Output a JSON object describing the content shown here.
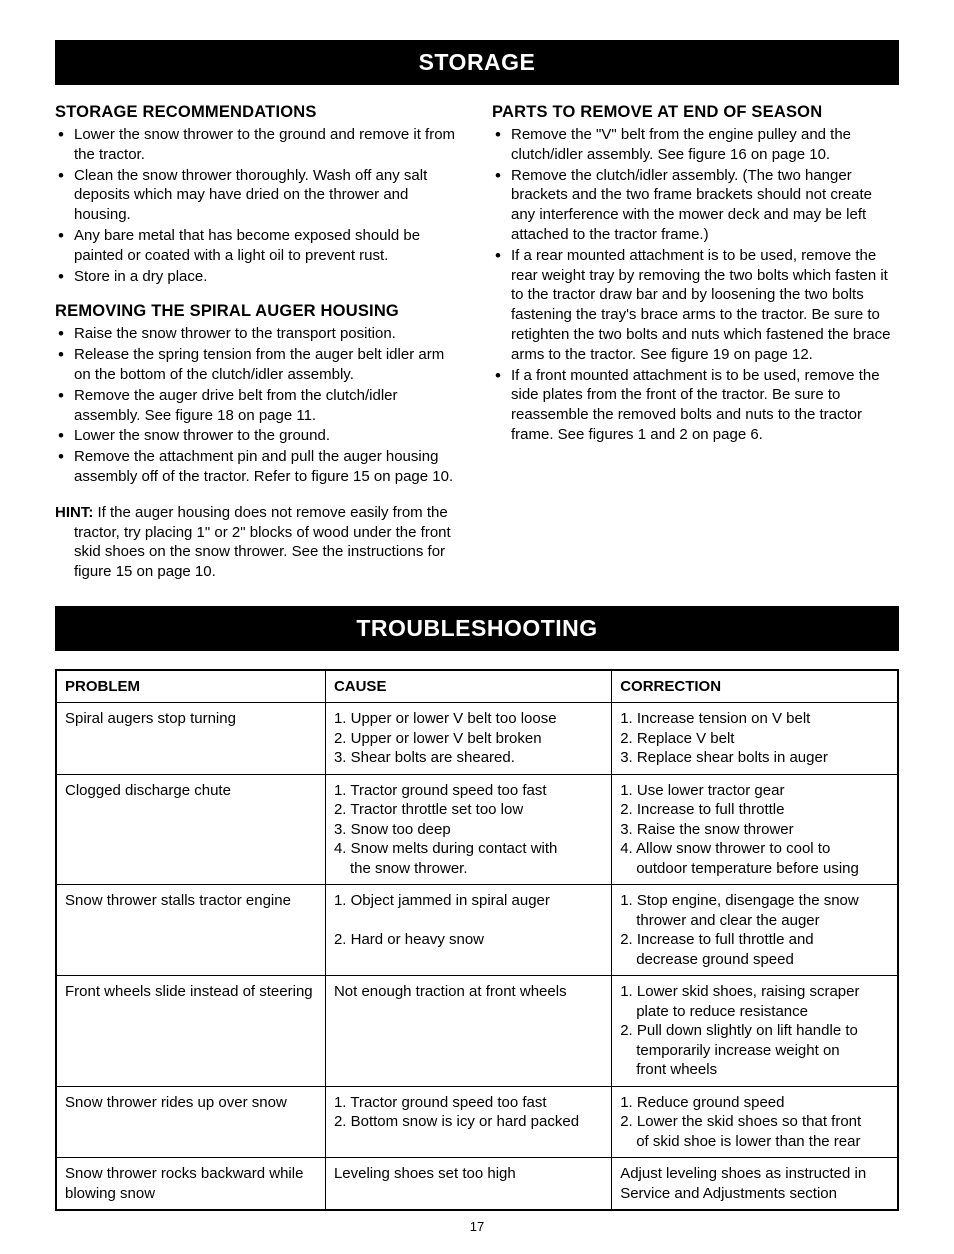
{
  "banner_storage": "STORAGE",
  "banner_trouble": "TROUBLESHOOTING",
  "storage_rec": {
    "title": "STORAGE RECOMMENDATIONS",
    "items": [
      "Lower the snow thrower to the ground and remove it from the tractor.",
      "Clean the snow thrower thoroughly. Wash off any salt deposits which may have dried on the thrower and housing.",
      "Any bare metal that has become exposed should be painted or coated with a light oil to prevent rust.",
      "Store in a dry place."
    ]
  },
  "removing": {
    "title": "REMOVING THE SPIRAL AUGER HOUSING",
    "items": [
      "Raise the snow thrower to the transport position.",
      "Release the spring tension from the auger belt idler arm on the bottom of the clutch/idler assembly.",
      "Remove the auger drive belt from the clutch/idler assembly. See figure 18 on page 11.",
      "Lower the snow thrower to the ground.",
      "Remove the attachment pin and pull the auger housing assembly off of the tractor. Refer to figure 15 on page 10."
    ],
    "hint_label": "HINT:",
    "hint_text": " If the auger housing does not remove easily from the tractor, try placing 1\" or 2\" blocks of wood under the front skid shoes on the snow thrower. See the instructions for figure 15 on page 10."
  },
  "parts": {
    "title": "PARTS TO REMOVE AT END OF SEASON",
    "items": [
      "Remove the \"V\" belt from the engine pulley and the clutch/idler assembly. See figure 16 on page 10.",
      "Remove the clutch/idler assembly. (The two hanger brackets and the two frame brackets should not create any interference with the mower deck and may be left attached to the tractor frame.)",
      "If a rear mounted attachment is to be used, remove the rear weight tray by removing the two bolts which fasten it to the tractor draw bar and by loosening the two bolts fastening the tray's brace arms to the tractor. Be sure to retighten the two bolts and nuts which fastened the brace arms to the tractor. See figure 19 on page 12.",
      "If a front mounted attachment is to be used, remove the side plates from the front of the tractor. Be sure to reassemble the removed bolts and nuts to the tractor frame. See figures 1 and 2 on page 6."
    ]
  },
  "table": {
    "headers": {
      "problem": "PROBLEM",
      "cause": "CAUSE",
      "correction": "CORRECTION"
    },
    "rows": [
      {
        "problem": "Spiral augers stop turning",
        "cause": "1. Upper or lower V belt too loose\n2. Upper or lower V belt broken\n3. Shear bolts are sheared.",
        "correction": "1. Increase tension on V belt\n2. Replace V belt\n3. Replace shear bolts in auger"
      },
      {
        "problem": "Clogged discharge chute",
        "cause": "1. Tractor ground speed too fast\n2. Tractor throttle set too low\n3. Snow too deep\n4. Snow melts during contact with\n    the snow thrower.",
        "correction": "1. Use lower tractor gear\n2. Increase to full throttle\n3. Raise the snow thrower\n4. Allow snow thrower to cool to\n    outdoor temperature before using"
      },
      {
        "problem": "Snow thrower stalls tractor engine",
        "cause": "1. Object jammed in spiral auger\n\n2. Hard or heavy snow",
        "correction": "1. Stop engine, disengage the snow\n    thrower and clear the auger\n2. Increase to full throttle and\n    decrease ground speed"
      },
      {
        "problem": "Front wheels slide instead of steering",
        "cause": "Not enough traction at front wheels",
        "correction": "1. Lower skid shoes, raising scraper\n    plate to reduce resistance\n2. Pull down slightly on lift handle to\n    temporarily increase weight on\n    front wheels"
      },
      {
        "problem": "Snow thrower rides up over snow",
        "cause": "1. Tractor ground speed too fast\n2. Bottom snow is icy or hard packed",
        "correction": "1. Reduce ground speed\n2. Lower the skid shoes so that front\n    of skid shoe is lower than the rear"
      },
      {
        "problem": "Snow thrower rocks backward while blowing snow",
        "cause": "Leveling shoes set too high",
        "correction": "Adjust leveling shoes as instructed in Service and Adjustments section"
      }
    ]
  },
  "page_number": "17"
}
